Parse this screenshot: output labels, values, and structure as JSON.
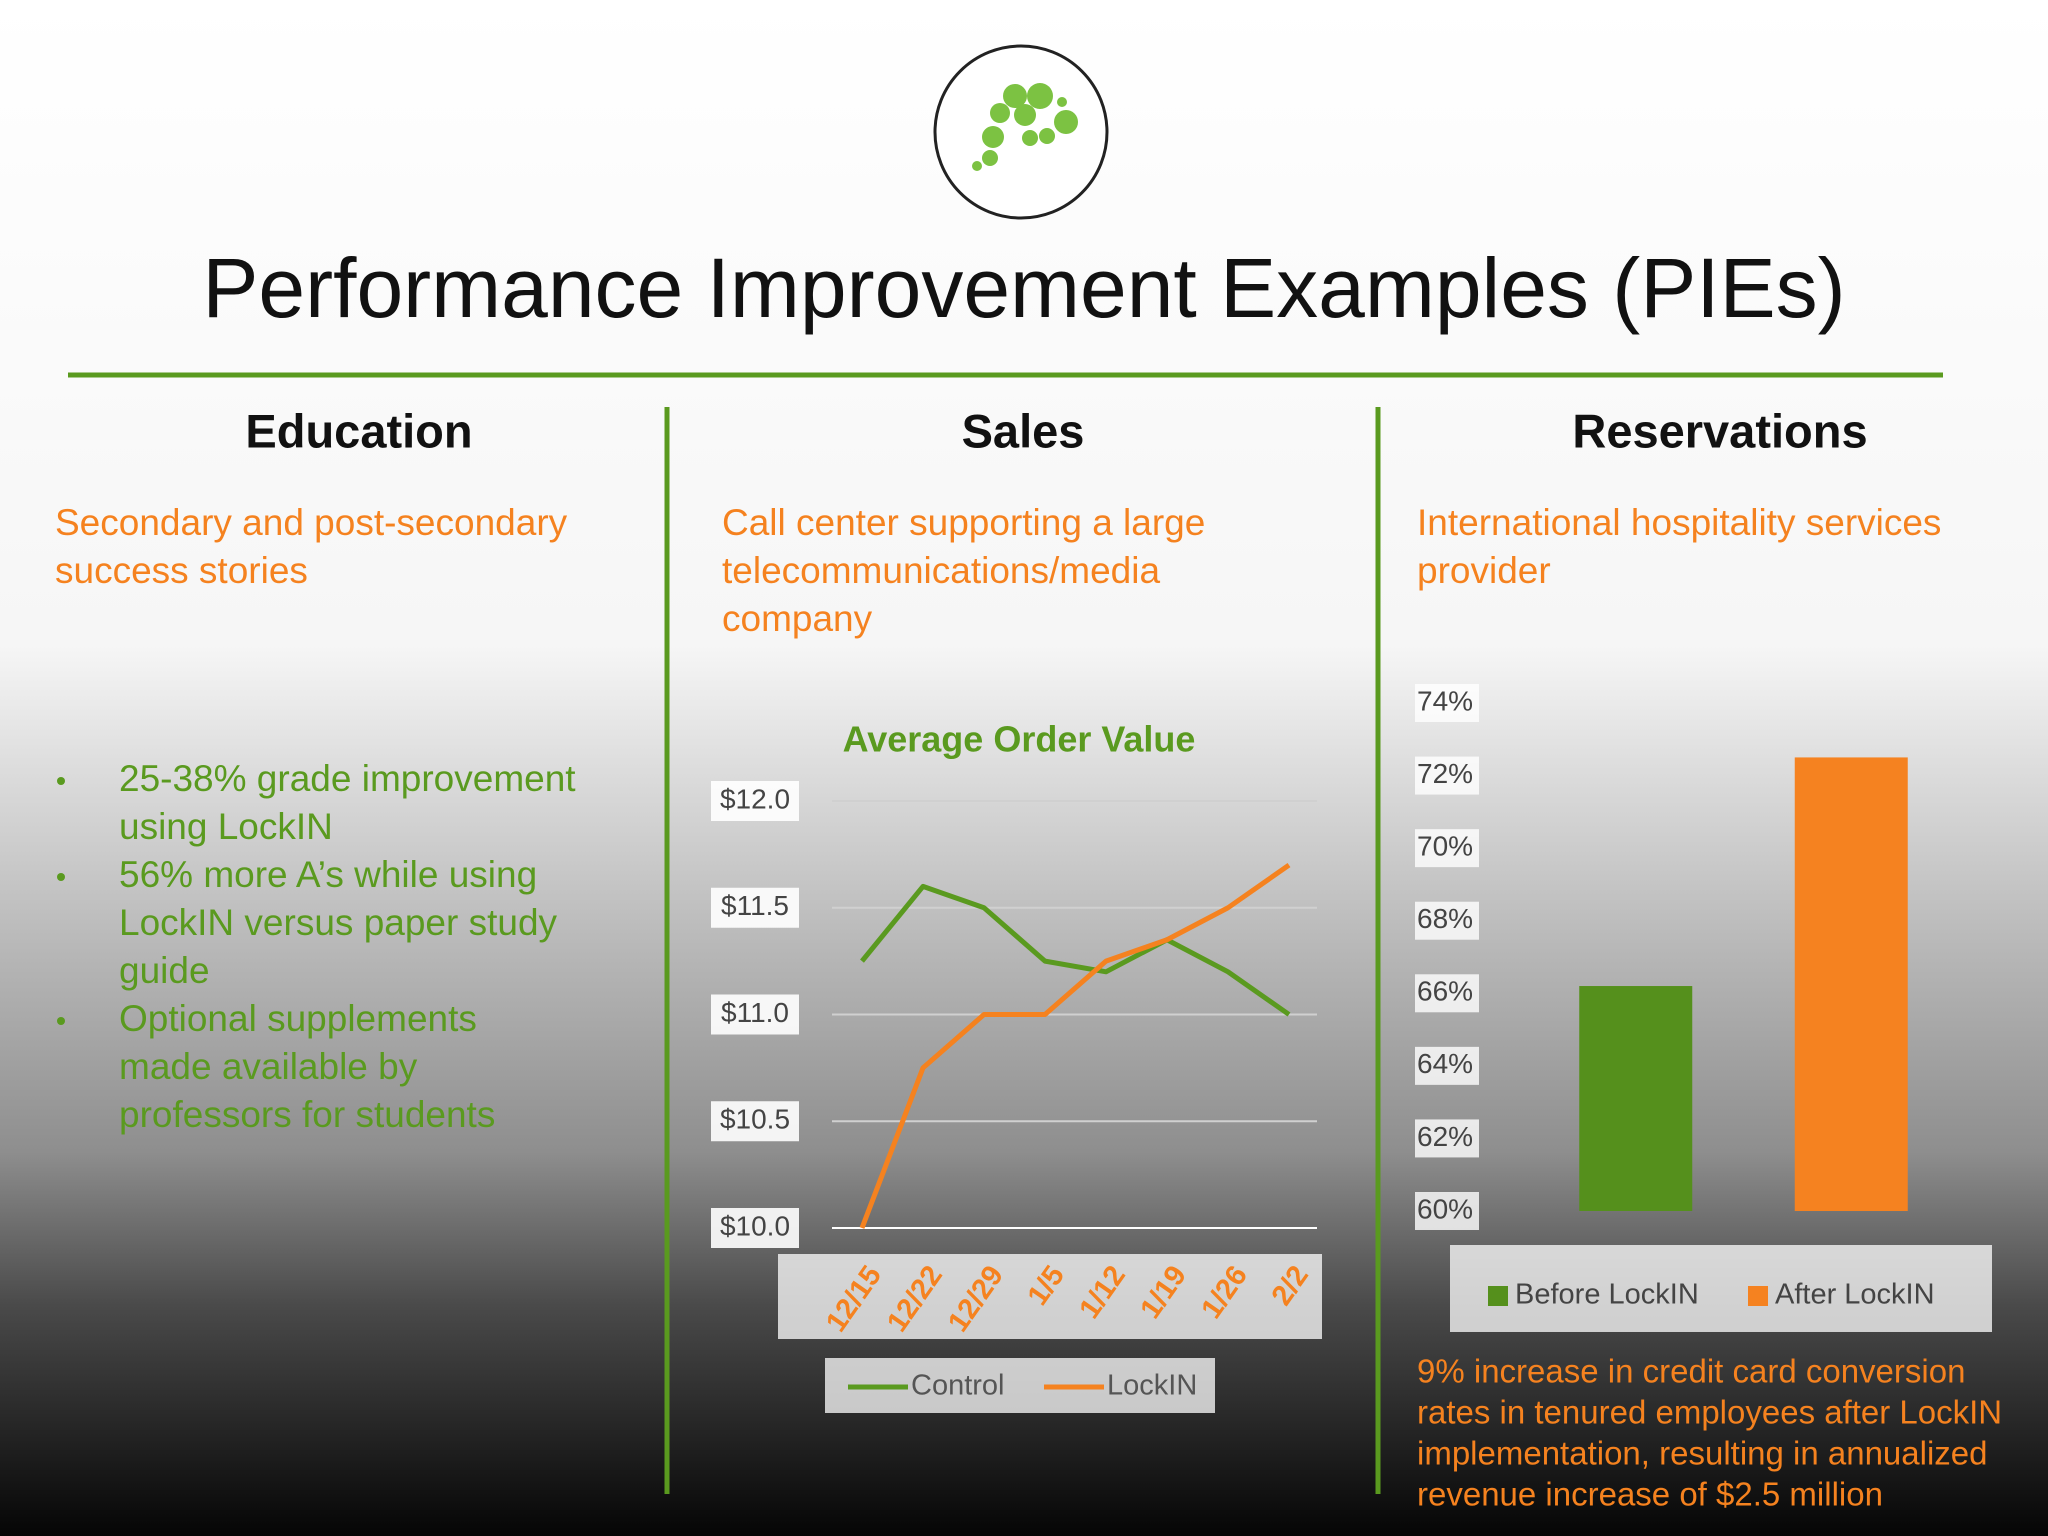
{
  "header": {
    "title": "Performance Improvement Examples (PIEs)"
  },
  "columns": [
    {
      "heading": "Education",
      "subtitle": [
        "Secondary and post-secondary",
        "success stories"
      ],
      "bullets": [
        [
          "25-38% grade improvement",
          "using LockIN"
        ],
        [
          "56% more A’s while using",
          "LockIN versus paper study",
          "guide"
        ],
        [
          "Optional supplements",
          "made available by",
          "professors for students"
        ]
      ]
    },
    {
      "heading": "Sales",
      "subtitle": [
        "Call center supporting a large",
        "telecommunications/media",
        "company"
      ]
    },
    {
      "heading": "Reservations",
      "subtitle": [
        "International hospitality services",
        "provider"
      ],
      "note": [
        "9% increase in credit card conversion",
        "rates in tenured employees after LockIN",
        "implementation, resulting in annualized",
        "revenue increase of $2.5 million"
      ]
    }
  ],
  "chart_data": [
    {
      "type": "line",
      "title": "Average Order Value",
      "categories": [
        "12/15",
        "12/22",
        "12/29",
        "1/5",
        "1/12",
        "1/19",
        "1/26",
        "2/2"
      ],
      "series": [
        {
          "name": "Control",
          "color": "#5a9a1f",
          "values": [
            11.25,
            11.6,
            11.5,
            11.25,
            11.2,
            11.35,
            11.2,
            11.0
          ]
        },
        {
          "name": "LockIN",
          "color": "#f5821f",
          "values": [
            10.0,
            10.75,
            11.0,
            11.0,
            11.25,
            11.35,
            11.5,
            11.7
          ]
        }
      ],
      "ylim": [
        10,
        12
      ],
      "yticks": [
        {
          "value": 10,
          "label": "$10.0"
        },
        {
          "value": 10.5,
          "label": "$10.5"
        },
        {
          "value": 11,
          "label": "$11.0"
        },
        {
          "value": 11.5,
          "label": "$11.5"
        },
        {
          "value": 12,
          "label": "$12.0"
        }
      ],
      "grid": true,
      "legend": "bottom"
    },
    {
      "type": "bar",
      "categories": [
        null
      ],
      "series": [
        {
          "name": "Before LockIN",
          "color": "#55901c",
          "values": [
            66.2
          ]
        },
        {
          "name": "After LockIN",
          "color": "#f58220",
          "values": [
            72.5
          ]
        }
      ],
      "ylim": [
        60,
        74
      ],
      "yticks": [
        {
          "value": 60,
          "label": "60%"
        },
        {
          "value": 62,
          "label": "62%"
        },
        {
          "value": 64,
          "label": "64%"
        },
        {
          "value": 66,
          "label": "66%"
        },
        {
          "value": 68,
          "label": "68%"
        },
        {
          "value": 70,
          "label": "70%"
        },
        {
          "value": 72,
          "label": "72%"
        },
        {
          "value": 74,
          "label": "74%"
        }
      ],
      "grid": false,
      "legend": "bottom"
    }
  ]
}
